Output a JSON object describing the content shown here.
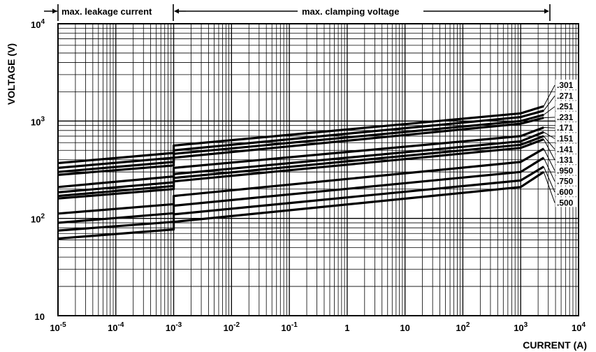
{
  "chart_data": {
    "type": "line",
    "xlabel": "CURRENT (A)",
    "ylabel": "VOLTAGE (V)",
    "xscale": "log",
    "yscale": "log",
    "xlim": [
      1e-05,
      10000
    ],
    "ylim": [
      10,
      10000
    ],
    "grid": true,
    "x_ticks": [
      {
        "base": "10",
        "exp": "-5"
      },
      {
        "base": "10",
        "exp": "-4"
      },
      {
        "base": "10",
        "exp": "-3"
      },
      {
        "base": "10",
        "exp": "-2"
      },
      {
        "base": "10",
        "exp": "-1"
      },
      {
        "base": "1",
        "exp": ""
      },
      {
        "base": "10",
        "exp": ""
      },
      {
        "base": "10",
        "exp": "2"
      },
      {
        "base": "10",
        "exp": "3"
      },
      {
        "base": "10",
        "exp": "4"
      }
    ],
    "y_ticks": [
      {
        "base": "10",
        "exp": ""
      },
      {
        "base": "10",
        "exp": "2"
      },
      {
        "base": "10",
        "exp": "3"
      },
      {
        "base": "10",
        "exp": "4"
      }
    ],
    "annotations": {
      "leakage": "max. leakage current",
      "clamping": "max. clamping voltage"
    },
    "series": [
      {
        "name": ".301",
        "x": [
          1e-05,
          0.001,
          0.001,
          1000,
          2500
        ],
        "y": [
          370,
          470,
          560,
          1200,
          1420
        ]
      },
      {
        "name": ".271",
        "x": [
          1e-05,
          0.001,
          0.001,
          1000,
          2500
        ],
        "y": [
          330,
          420,
          500,
          1100,
          1280
        ]
      },
      {
        "name": ".251",
        "x": [
          1e-05,
          0.001,
          0.001,
          1000,
          2500
        ],
        "y": [
          300,
          380,
          460,
          1000,
          1160
        ]
      },
      {
        "name": ".231",
        "x": [
          1e-05,
          0.001,
          0.001,
          1000,
          2500
        ],
        "y": [
          280,
          350,
          420,
          940,
          1080
        ]
      },
      {
        "name": ".171",
        "x": [
          1e-05,
          0.001,
          0.001,
          1000,
          2500
        ],
        "y": [
          210,
          270,
          330,
          700,
          860
        ]
      },
      {
        "name": ".151",
        "x": [
          1e-05,
          0.001,
          0.001,
          1000,
          2500
        ],
        "y": [
          185,
          235,
          285,
          620,
          770
        ]
      },
      {
        "name": ".141",
        "x": [
          1e-05,
          0.001,
          0.001,
          1000,
          2500
        ],
        "y": [
          170,
          215,
          260,
          570,
          700
        ]
      },
      {
        "name": ".131",
        "x": [
          1e-05,
          0.001,
          0.001,
          1000,
          2500
        ],
        "y": [
          160,
          200,
          240,
          530,
          650
        ]
      },
      {
        "name": ".950",
        "x": [
          1e-05,
          0.001,
          0.001,
          1000,
          2500
        ],
        "y": [
          112,
          140,
          170,
          380,
          520
        ]
      },
      {
        "name": ".750",
        "x": [
          1e-05,
          0.001,
          0.001,
          1000,
          2500
        ],
        "y": [
          90,
          113,
          135,
          300,
          420
        ]
      },
      {
        "name": ".600",
        "x": [
          1e-05,
          0.001,
          0.001,
          1000,
          2500
        ],
        "y": [
          75,
          92,
          110,
          245,
          340
        ]
      },
      {
        "name": ".500",
        "x": [
          1e-05,
          0.001,
          0.001,
          1000,
          2500
        ],
        "y": [
          62,
          77,
          92,
          210,
          300
        ]
      }
    ]
  }
}
